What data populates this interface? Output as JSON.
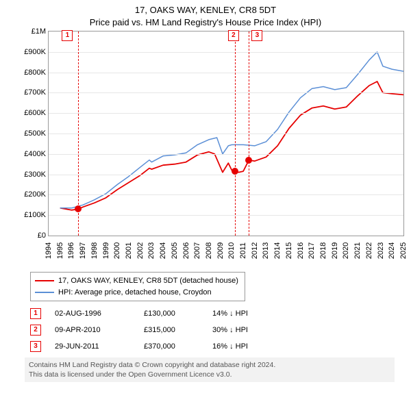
{
  "title": {
    "line1": "17, OAKS WAY, KENLEY, CR8 5DT",
    "line2": "Price paid vs. HM Land Registry's House Price Index (HPI)",
    "fontsize": 13,
    "color": "#000000"
  },
  "chart": {
    "type": "line",
    "background": "#ffffff",
    "border_color": "#999999",
    "grid_color": "#e6e6e6",
    "x": {
      "min": 1994,
      "max": 2025,
      "tick_step": 1,
      "label_fontsize": 11
    },
    "y": {
      "min": 0,
      "max": 1000000,
      "tick_step": 100000,
      "tick_labels": [
        "£0",
        "£100K",
        "£200K",
        "£300K",
        "£400K",
        "£500K",
        "£600K",
        "£700K",
        "£800K",
        "£900K",
        "£1M"
      ],
      "label_fontsize": 11
    },
    "series": [
      {
        "name": "property",
        "label": "17, OAKS WAY, KENLEY, CR8 5DT (detached house)",
        "color": "#e60000",
        "line_width": 1.8,
        "data": [
          [
            1995.0,
            135000
          ],
          [
            1996.0,
            125000
          ],
          [
            1996.6,
            130000
          ],
          [
            1997.0,
            140000
          ],
          [
            1998.0,
            160000
          ],
          [
            1999.0,
            185000
          ],
          [
            2000.0,
            225000
          ],
          [
            2001.0,
            260000
          ],
          [
            2002.0,
            295000
          ],
          [
            2002.8,
            330000
          ],
          [
            2003.0,
            325000
          ],
          [
            2004.0,
            345000
          ],
          [
            2005.0,
            350000
          ],
          [
            2006.0,
            360000
          ],
          [
            2007.0,
            395000
          ],
          [
            2008.0,
            410000
          ],
          [
            2008.5,
            400000
          ],
          [
            2009.2,
            310000
          ],
          [
            2009.7,
            355000
          ],
          [
            2010.0,
            320000
          ],
          [
            2010.27,
            315000
          ],
          [
            2010.6,
            310000
          ],
          [
            2011.0,
            315000
          ],
          [
            2011.5,
            370000
          ],
          [
            2012.0,
            365000
          ],
          [
            2013.0,
            385000
          ],
          [
            2014.0,
            440000
          ],
          [
            2015.0,
            525000
          ],
          [
            2016.0,
            590000
          ],
          [
            2017.0,
            625000
          ],
          [
            2018.0,
            635000
          ],
          [
            2019.0,
            620000
          ],
          [
            2020.0,
            630000
          ],
          [
            2021.0,
            685000
          ],
          [
            2022.0,
            735000
          ],
          [
            2022.7,
            755000
          ],
          [
            2023.2,
            700000
          ],
          [
            2024.0,
            695000
          ],
          [
            2025.0,
            690000
          ]
        ]
      },
      {
        "name": "hpi",
        "label": "HPI: Average price, detached house, Croydon",
        "color": "#5b8fd6",
        "line_width": 1.5,
        "data": [
          [
            1995.0,
            135000
          ],
          [
            1996.0,
            135000
          ],
          [
            1997.0,
            150000
          ],
          [
            1998.0,
            175000
          ],
          [
            1999.0,
            205000
          ],
          [
            2000.0,
            250000
          ],
          [
            2001.0,
            290000
          ],
          [
            2002.0,
            335000
          ],
          [
            2002.8,
            370000
          ],
          [
            2003.0,
            360000
          ],
          [
            2004.0,
            390000
          ],
          [
            2005.0,
            395000
          ],
          [
            2006.0,
            405000
          ],
          [
            2007.0,
            445000
          ],
          [
            2008.0,
            470000
          ],
          [
            2008.7,
            480000
          ],
          [
            2009.2,
            400000
          ],
          [
            2009.7,
            440000
          ],
          [
            2010.0,
            445000
          ],
          [
            2011.0,
            445000
          ],
          [
            2012.0,
            440000
          ],
          [
            2013.0,
            460000
          ],
          [
            2014.0,
            520000
          ],
          [
            2015.0,
            605000
          ],
          [
            2016.0,
            675000
          ],
          [
            2017.0,
            720000
          ],
          [
            2018.0,
            730000
          ],
          [
            2019.0,
            715000
          ],
          [
            2020.0,
            725000
          ],
          [
            2021.0,
            790000
          ],
          [
            2022.0,
            860000
          ],
          [
            2022.7,
            900000
          ],
          [
            2023.2,
            830000
          ],
          [
            2024.0,
            815000
          ],
          [
            2025.0,
            805000
          ]
        ]
      }
    ],
    "markers": [
      {
        "x": 1996.6,
        "y": 130000,
        "color": "#e60000",
        "size": 10
      },
      {
        "x": 2010.27,
        "y": 315000,
        "color": "#e60000",
        "size": 10
      },
      {
        "x": 2011.5,
        "y": 370000,
        "color": "#e60000",
        "size": 10
      }
    ],
    "event_lines": [
      {
        "n": "1",
        "x": 1996.6,
        "color": "#e60000"
      },
      {
        "n": "2",
        "x": 2010.27,
        "color": "#e60000"
      },
      {
        "n": "3",
        "x": 2011.5,
        "color": "#e60000"
      }
    ],
    "event_box_offset": [
      -16,
      -2,
      12
    ]
  },
  "legend": {
    "border_color": "#999999",
    "fontsize": 11
  },
  "events_table": {
    "rows": [
      {
        "n": "1",
        "date": "02-AUG-1996",
        "price": "£130,000",
        "delta": "14% ↓ HPI"
      },
      {
        "n": "2",
        "date": "09-APR-2010",
        "price": "£315,000",
        "delta": "30% ↓ HPI"
      },
      {
        "n": "3",
        "date": "29-JUN-2011",
        "price": "£370,000",
        "delta": "16% ↓ HPI"
      }
    ],
    "fontsize": 11
  },
  "footer": {
    "line1": "Contains HM Land Registry data © Crown copyright and database right 2024.",
    "line2": "This data is licensed under the Open Government Licence v3.0.",
    "background": "#f2f2f2",
    "color": "#555555",
    "fontsize": 10.5
  }
}
